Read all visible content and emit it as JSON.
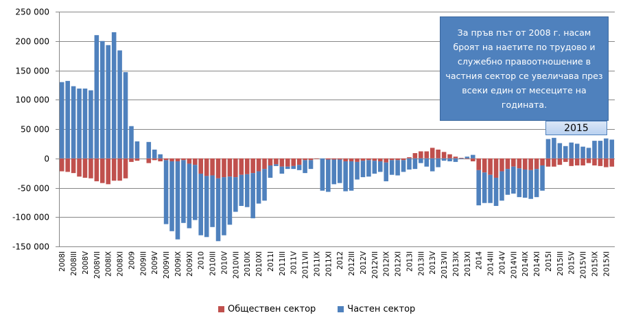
{
  "chart_data": {
    "type": "bar",
    "stacked": true,
    "title": "",
    "xlabel": "",
    "ylabel": "",
    "ylim": [
      -150000,
      250000
    ],
    "yticks": [
      250000,
      200000,
      150000,
      100000,
      50000,
      0,
      -50000,
      -100000,
      -150000
    ],
    "ytick_labels": [
      "250 000",
      "200 000",
      "150 000",
      "100 000",
      "50 000",
      "0",
      "-50 000",
      "-100 000",
      "-150 000"
    ],
    "grid": true,
    "legend_position": "bottom",
    "years": [
      "2008",
      "2009",
      "2010",
      "2011",
      "2012",
      "2013",
      "2014",
      "2015"
    ],
    "months": [
      "I",
      "II",
      "III",
      "IV",
      "V",
      "VI",
      "VII",
      "VIII",
      "IX",
      "X",
      "XI",
      "XII"
    ],
    "label_every": 2,
    "series": [
      {
        "name": "Обществен сектор",
        "color": "#c0504d",
        "values_thousands": [
          -22,
          -23,
          -25,
          -31,
          -33,
          -34,
          -39,
          -42,
          -44,
          -38,
          -38,
          -34,
          -6,
          -4,
          0,
          -8,
          -3,
          -5,
          -3,
          -5,
          -5,
          -3,
          -9,
          -11,
          -26,
          -30,
          -29,
          -34,
          -32,
          -31,
          -32,
          -28,
          -27,
          -25,
          -22,
          -18,
          -12,
          -10,
          -14,
          -14,
          -13,
          -11,
          -3,
          -3,
          -1,
          0,
          -2,
          -2,
          -2,
          -5,
          -5,
          -6,
          -4,
          -3,
          -4,
          -5,
          -7,
          -3,
          -3,
          -3,
          2,
          9,
          12,
          12,
          18,
          15,
          11,
          7,
          3,
          1,
          -1,
          -5,
          -20,
          -24,
          -28,
          -33,
          -22,
          -18,
          -14,
          -17,
          -19,
          -20,
          -18,
          -12,
          -14,
          -14,
          -11,
          -6,
          -13,
          -12,
          -12,
          -8,
          -12,
          -13,
          -15,
          -14
        ]
      },
      {
        "name": "Частен сектор",
        "color": "#4f81bd",
        "values_thousands": [
          130,
          132,
          123,
          119,
          119,
          116,
          210,
          200,
          193,
          215,
          184,
          147,
          55,
          29,
          0,
          28,
          15,
          7,
          -109,
          -119,
          -133,
          -107,
          -110,
          -94,
          -105,
          -104,
          -88,
          -107,
          -99,
          -82,
          -59,
          -53,
          -56,
          -77,
          -55,
          -54,
          -21,
          -3,
          -12,
          -4,
          -5,
          -9,
          -22,
          -15,
          0,
          -55,
          -55,
          -42,
          -40,
          -51,
          -50,
          -30,
          -28,
          -28,
          -22,
          -18,
          -32,
          -25,
          -26,
          -20,
          -19,
          -18,
          -8,
          -14,
          -22,
          -15,
          -4,
          -5,
          -6,
          -1,
          3,
          6,
          -60,
          -52,
          -48,
          -48,
          -50,
          -44,
          -46,
          -49,
          -48,
          -49,
          -48,
          -43,
          33,
          35,
          26,
          21,
          27,
          25,
          20,
          18,
          30,
          30,
          34,
          32
        ]
      }
    ],
    "annotation": "За пръв път от 2008 г. насам броят на наетите по трудово и служебно правоотношение в частния сектор се увеличава през всеки един от месеците на годината.",
    "highlight_label": "2015"
  }
}
